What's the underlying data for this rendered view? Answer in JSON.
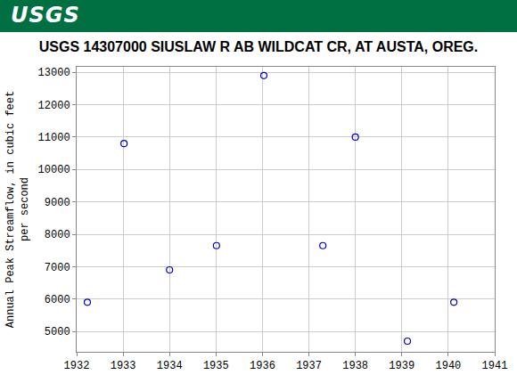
{
  "header": {
    "logo": "USGS"
  },
  "chart_data": {
    "type": "scatter",
    "title": "USGS 14307000 SIUSLAW R AB WILDCAT CR, AT AUSTA, OREG.",
    "ylabel": [
      "Annual Peak Streamflow, in cubic feet",
      "per second"
    ],
    "x": [
      1932.23,
      1933.02,
      1934.0,
      1935.01,
      1936.03,
      1937.3,
      1938.0,
      1939.12,
      1940.12
    ],
    "values": [
      5900,
      10800,
      6900,
      7650,
      12900,
      7650,
      11000,
      4700,
      5900
    ],
    "color": "#0000cc",
    "marker": "open-circle",
    "xlim": [
      1932,
      1941
    ],
    "xticks": [
      1932,
      1933,
      1934,
      1935,
      1936,
      1937,
      1938,
      1939,
      1940,
      1941
    ],
    "ylim": [
      4370,
      13170
    ],
    "yticks": [
      5000,
      6000,
      7000,
      8000,
      9000,
      10000,
      11000,
      12000,
      13000
    ],
    "grid": true
  }
}
